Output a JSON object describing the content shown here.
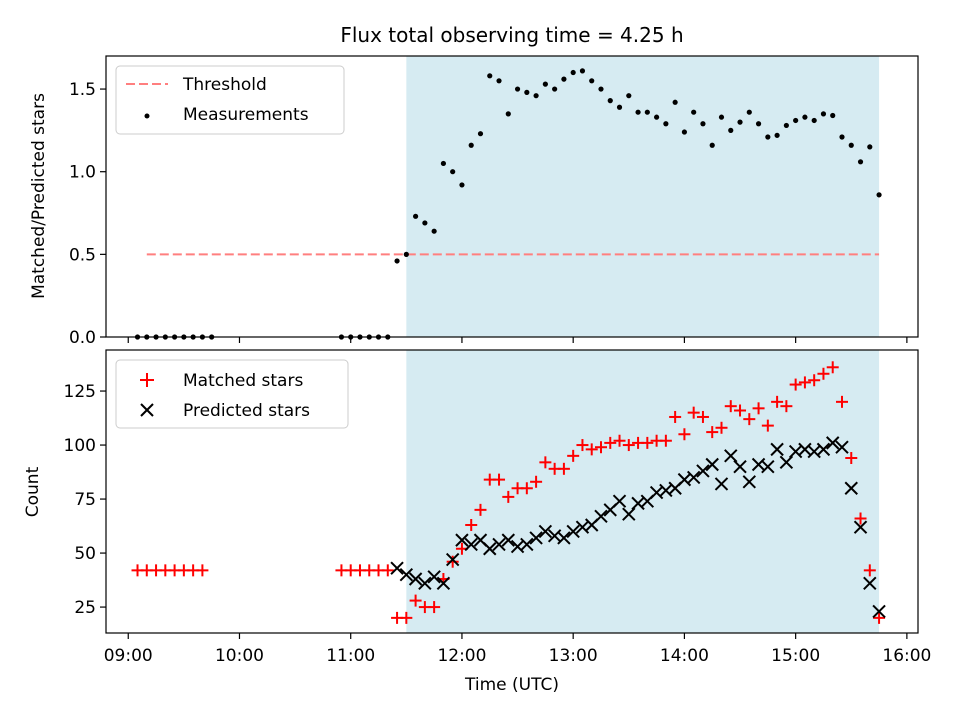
{
  "chart_data": [
    {
      "type": "scatter",
      "title": "Flux total observing time = 4.25 h",
      "xlabel": "",
      "ylabel": "Matched/Predicted stars",
      "xlim": [
        "08:48",
        "16:06"
      ],
      "ylim": [
        0,
        1.7
      ],
      "yticks": [
        "0.0",
        "0.5",
        "1.0",
        "1.5"
      ],
      "shaded_interval": [
        "11:30",
        "15:45"
      ],
      "grid": false,
      "legend_position": "top-left",
      "legend": [
        "Threshold",
        "Measurements"
      ],
      "threshold": {
        "name": "Threshold",
        "value": 0.5,
        "x_range": [
          "09:10",
          "15:45"
        ],
        "color": "#ff7f7f",
        "style": "dashed"
      },
      "series": [
        {
          "name": "Measurements",
          "color": "#000000",
          "marker": "dot",
          "points": [
            [
              "09:05",
              0
            ],
            [
              "09:10",
              0
            ],
            [
              "09:15",
              0
            ],
            [
              "09:20",
              0
            ],
            [
              "09:25",
              0
            ],
            [
              "09:30",
              0
            ],
            [
              "09:35",
              0
            ],
            [
              "09:40",
              0
            ],
            [
              "09:45",
              0
            ],
            [
              "10:55",
              0
            ],
            [
              "11:00",
              0
            ],
            [
              "11:05",
              0
            ],
            [
              "11:10",
              0
            ],
            [
              "11:15",
              0
            ],
            [
              "11:20",
              0
            ],
            [
              "11:25",
              0.46
            ],
            [
              "11:30",
              0.5
            ],
            [
              "11:35",
              0.73
            ],
            [
              "11:40",
              0.69
            ],
            [
              "11:45",
              0.64
            ],
            [
              "11:50",
              1.05
            ],
            [
              "11:55",
              1.0
            ],
            [
              "12:00",
              0.92
            ],
            [
              "12:05",
              1.16
            ],
            [
              "12:10",
              1.23
            ],
            [
              "12:15",
              1.58
            ],
            [
              "12:20",
              1.55
            ],
            [
              "12:25",
              1.35
            ],
            [
              "12:30",
              1.5
            ],
            [
              "12:35",
              1.48
            ],
            [
              "12:40",
              1.46
            ],
            [
              "12:45",
              1.53
            ],
            [
              "12:50",
              1.5
            ],
            [
              "12:55",
              1.56
            ],
            [
              "13:00",
              1.6
            ],
            [
              "13:05",
              1.61
            ],
            [
              "13:10",
              1.55
            ],
            [
              "13:15",
              1.5
            ],
            [
              "13:20",
              1.43
            ],
            [
              "13:25",
              1.39
            ],
            [
              "13:30",
              1.46
            ],
            [
              "13:35",
              1.36
            ],
            [
              "13:40",
              1.36
            ],
            [
              "13:45",
              1.33
            ],
            [
              "13:50",
              1.29
            ],
            [
              "13:55",
              1.42
            ],
            [
              "14:00",
              1.24
            ],
            [
              "14:05",
              1.36
            ],
            [
              "14:10",
              1.29
            ],
            [
              "14:15",
              1.16
            ],
            [
              "14:20",
              1.33
            ],
            [
              "14:25",
              1.25
            ],
            [
              "14:30",
              1.3
            ],
            [
              "14:35",
              1.36
            ],
            [
              "14:40",
              1.29
            ],
            [
              "14:45",
              1.21
            ],
            [
              "14:50",
              1.22
            ],
            [
              "14:55",
              1.28
            ],
            [
              "15:00",
              1.31
            ],
            [
              "15:05",
              1.33
            ],
            [
              "15:10",
              1.31
            ],
            [
              "15:15",
              1.35
            ],
            [
              "15:20",
              1.34
            ],
            [
              "15:25",
              1.21
            ],
            [
              "15:30",
              1.16
            ],
            [
              "15:35",
              1.06
            ],
            [
              "15:40",
              1.15
            ],
            [
              "15:45",
              0.86
            ]
          ]
        }
      ]
    },
    {
      "type": "scatter",
      "title": "",
      "xlabel": "Time (UTC)",
      "ylabel": "Count",
      "xlim": [
        "08:48",
        "16:06"
      ],
      "ylim": [
        13,
        144
      ],
      "xticks": [
        "09:00",
        "10:00",
        "11:00",
        "12:00",
        "13:00",
        "14:00",
        "15:00",
        "16:00"
      ],
      "yticks": [
        "25",
        "50",
        "75",
        "100",
        "125"
      ],
      "shaded_interval": [
        "11:30",
        "15:45"
      ],
      "grid": false,
      "legend_position": "top-left",
      "legend": [
        "Matched stars",
        "Predicted stars"
      ],
      "series": [
        {
          "name": "Matched stars",
          "color": "#ff0000",
          "marker": "plus",
          "points": [
            [
              "09:05",
              42
            ],
            [
              "09:10",
              42
            ],
            [
              "09:15",
              42
            ],
            [
              "09:20",
              42
            ],
            [
              "09:25",
              42
            ],
            [
              "09:30",
              42
            ],
            [
              "09:35",
              42
            ],
            [
              "09:40",
              42
            ],
            [
              "10:55",
              42
            ],
            [
              "11:00",
              42
            ],
            [
              "11:05",
              42
            ],
            [
              "11:10",
              42
            ],
            [
              "11:15",
              42
            ],
            [
              "11:20",
              42
            ],
            [
              "11:25",
              20
            ],
            [
              "11:30",
              20
            ],
            [
              "11:35",
              28
            ],
            [
              "11:40",
              25
            ],
            [
              "11:45",
              25
            ],
            [
              "11:50",
              38
            ],
            [
              "11:55",
              46
            ],
            [
              "12:00",
              52
            ],
            [
              "12:05",
              63
            ],
            [
              "12:10",
              70
            ],
            [
              "12:15",
              84
            ],
            [
              "12:20",
              84
            ],
            [
              "12:25",
              76
            ],
            [
              "12:30",
              80
            ],
            [
              "12:35",
              80
            ],
            [
              "12:40",
              83
            ],
            [
              "12:45",
              92
            ],
            [
              "12:50",
              89
            ],
            [
              "12:55",
              89
            ],
            [
              "13:00",
              95
            ],
            [
              "13:05",
              100
            ],
            [
              "13:10",
              98
            ],
            [
              "13:15",
              99
            ],
            [
              "13:20",
              101
            ],
            [
              "13:25",
              102
            ],
            [
              "13:30",
              100
            ],
            [
              "13:35",
              101
            ],
            [
              "13:40",
              101
            ],
            [
              "13:45",
              102
            ],
            [
              "13:50",
              102
            ],
            [
              "13:55",
              113
            ],
            [
              "14:00",
              105
            ],
            [
              "14:05",
              115
            ],
            [
              "14:10",
              113
            ],
            [
              "14:15",
              106
            ],
            [
              "14:20",
              108
            ],
            [
              "14:25",
              118
            ],
            [
              "14:30",
              116
            ],
            [
              "14:35",
              112
            ],
            [
              "14:40",
              117
            ],
            [
              "14:45",
              109
            ],
            [
              "14:50",
              120
            ],
            [
              "14:55",
              118
            ],
            [
              "15:00",
              128
            ],
            [
              "15:05",
              129
            ],
            [
              "15:10",
              130
            ],
            [
              "15:15",
              133
            ],
            [
              "15:20",
              136
            ],
            [
              "15:25",
              120
            ],
            [
              "15:30",
              94
            ],
            [
              "15:35",
              66
            ],
            [
              "15:40",
              42
            ],
            [
              "15:45",
              20
            ]
          ]
        },
        {
          "name": "Predicted stars",
          "color": "#000000",
          "marker": "x",
          "points": [
            [
              "11:25",
              43
            ],
            [
              "11:30",
              40
            ],
            [
              "11:35",
              38
            ],
            [
              "11:40",
              36
            ],
            [
              "11:45",
              39
            ],
            [
              "11:50",
              36
            ],
            [
              "11:55",
              47
            ],
            [
              "12:00",
              56
            ],
            [
              "12:05",
              54
            ],
            [
              "12:10",
              56
            ],
            [
              "12:15",
              52
            ],
            [
              "12:20",
              54
            ],
            [
              "12:25",
              56
            ],
            [
              "12:30",
              53
            ],
            [
              "12:35",
              54
            ],
            [
              "12:40",
              57
            ],
            [
              "12:45",
              60
            ],
            [
              "12:50",
              58
            ],
            [
              "12:55",
              57
            ],
            [
              "13:00",
              60
            ],
            [
              "13:05",
              62
            ],
            [
              "13:10",
              63
            ],
            [
              "13:15",
              67
            ],
            [
              "13:20",
              70
            ],
            [
              "13:25",
              74
            ],
            [
              "13:30",
              68
            ],
            [
              "13:35",
              73
            ],
            [
              "13:40",
              74
            ],
            [
              "13:45",
              78
            ],
            [
              "13:50",
              79
            ],
            [
              "13:55",
              80
            ],
            [
              "14:00",
              84
            ],
            [
              "14:05",
              85
            ],
            [
              "14:10",
              88
            ],
            [
              "14:15",
              91
            ],
            [
              "14:20",
              82
            ],
            [
              "14:25",
              95
            ],
            [
              "14:30",
              90
            ],
            [
              "14:35",
              83
            ],
            [
              "14:40",
              91
            ],
            [
              "14:45",
              90
            ],
            [
              "14:50",
              98
            ],
            [
              "14:55",
              92
            ],
            [
              "15:00",
              97
            ],
            [
              "15:05",
              98
            ],
            [
              "15:10",
              97
            ],
            [
              "15:15",
              98
            ],
            [
              "15:20",
              101
            ],
            [
              "15:25",
              99
            ],
            [
              "15:30",
              80
            ],
            [
              "15:35",
              62
            ],
            [
              "15:40",
              36
            ],
            [
              "15:45",
              23
            ]
          ]
        }
      ]
    }
  ]
}
